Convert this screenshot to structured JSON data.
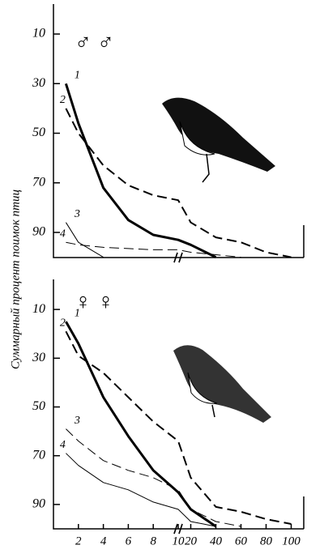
{
  "chart_data": [
    {
      "type": "line",
      "annotation": "♂ ♂",
      "ylabel": "Суммарный процент поимок птиц",
      "x": [
        1,
        2,
        4,
        6,
        8,
        10,
        20,
        40,
        60,
        80,
        100
      ],
      "xlim": [
        0,
        110
      ],
      "x_break": 10,
      "ylim": [
        0,
        100
      ],
      "y_inverted": true,
      "yticks": [
        10,
        30,
        50,
        70,
        90
      ],
      "series": [
        {
          "name": "1",
          "color": "#000",
          "width": 3,
          "dashed": false,
          "values": [
            30,
            46,
            72,
            85,
            91,
            93,
            95,
            100,
            null,
            null,
            null
          ]
        },
        {
          "name": "2",
          "color": "#000",
          "width": 2,
          "dashed": true,
          "values": [
            40,
            50,
            63,
            71,
            75,
            77,
            86,
            92,
            94,
            98,
            100
          ]
        },
        {
          "name": "3",
          "color": "#000",
          "width": 1,
          "dashed": false,
          "values": [
            86,
            94,
            100,
            null,
            null,
            null,
            null,
            null,
            null,
            null,
            null
          ]
        },
        {
          "name": "4",
          "color": "#000",
          "width": 1,
          "dashed": true,
          "values": [
            94,
            95,
            96,
            96.5,
            97,
            97,
            98,
            99,
            100,
            null,
            null
          ]
        }
      ]
    },
    {
      "type": "line",
      "annotation": "♀ ♀",
      "x": [
        1,
        2,
        4,
        6,
        8,
        10,
        20,
        40,
        60,
        80,
        100
      ],
      "xlim": [
        0,
        110
      ],
      "x_break": 10,
      "ylim": [
        0,
        100
      ],
      "y_inverted": true,
      "yticks": [
        10,
        30,
        50,
        70,
        90
      ],
      "xticks": [
        2,
        4,
        6,
        8,
        10,
        20,
        40,
        60,
        80,
        100
      ],
      "series": [
        {
          "name": "1",
          "color": "#000",
          "width": 3,
          "dashed": false,
          "values": [
            15,
            24,
            46,
            62,
            76,
            85,
            92,
            99,
            null,
            null,
            null
          ]
        },
        {
          "name": "2",
          "color": "#000",
          "width": 2,
          "dashed": true,
          "values": [
            19,
            29,
            36,
            46,
            56,
            64,
            79,
            91,
            93,
            96,
            98
          ]
        },
        {
          "name": "3",
          "color": "#000",
          "width": 1,
          "dashed": true,
          "values": [
            59,
            64,
            72,
            76,
            79,
            84,
            92,
            97,
            99,
            null,
            null
          ]
        },
        {
          "name": "4",
          "color": "#000",
          "width": 1,
          "dashed": false,
          "values": [
            69,
            74,
            81,
            84,
            89,
            92,
            97,
            99,
            null,
            null,
            null
          ]
        }
      ]
    }
  ]
}
